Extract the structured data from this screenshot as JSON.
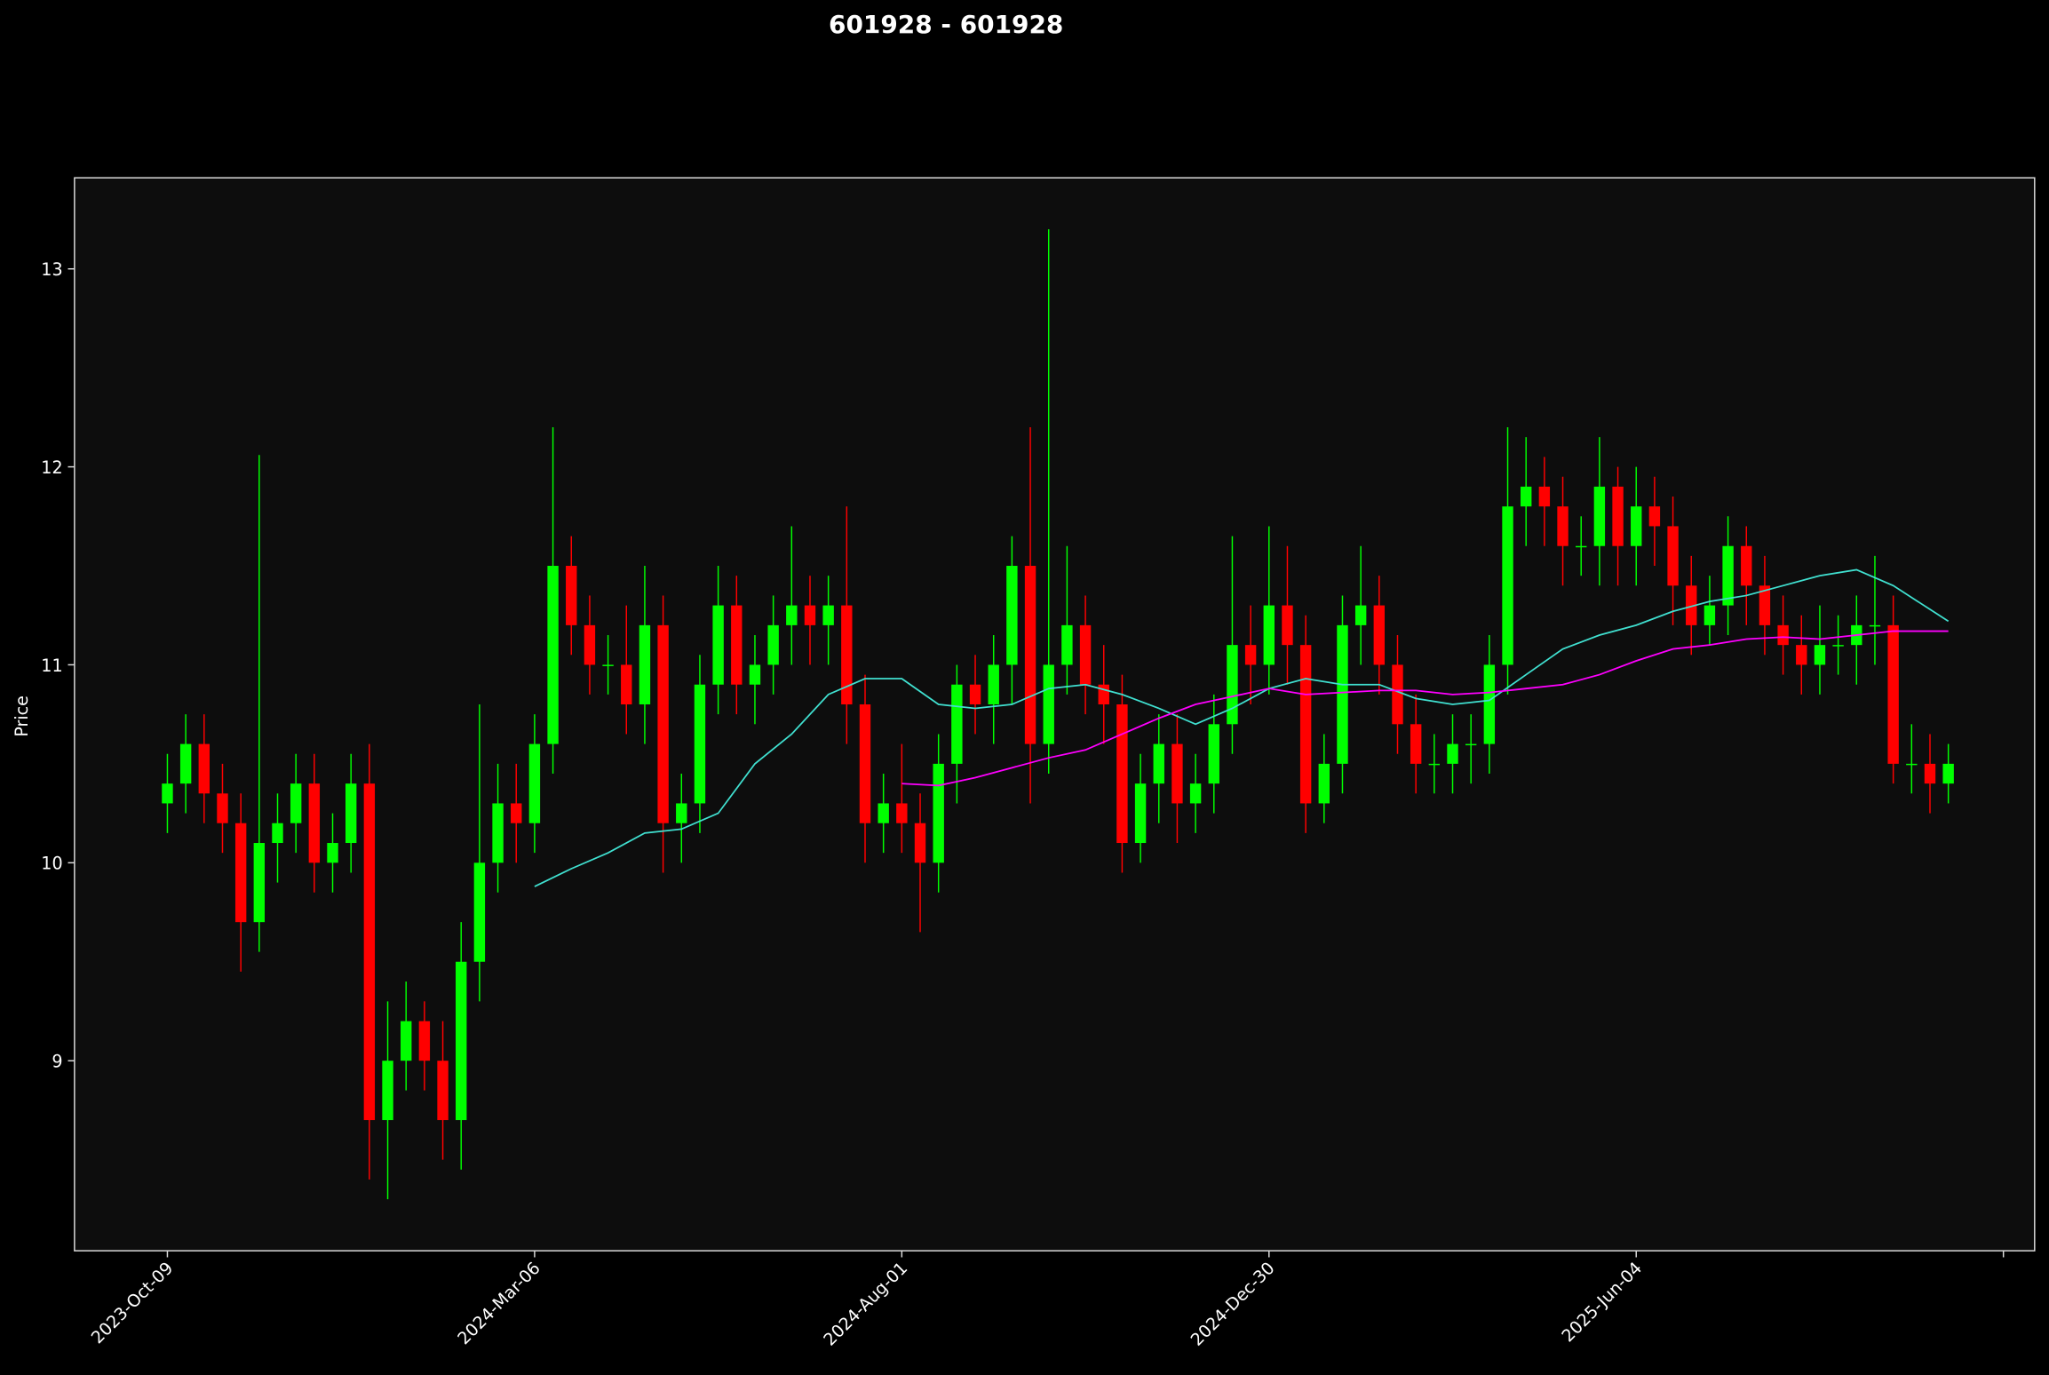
{
  "chart_data": {
    "type": "candlestick",
    "title": "601928 - 601928",
    "ylabel": "Price",
    "x": [
      0,
      5,
      10,
      15,
      20,
      25,
      30,
      35,
      40,
      45,
      50,
      55,
      60,
      65,
      70,
      75,
      80,
      85,
      90,
      95,
      100,
      105,
      110,
      115,
      120,
      125,
      130,
      135,
      140,
      145,
      150,
      155,
      160,
      165,
      170,
      175,
      180,
      185,
      190,
      195,
      200,
      205,
      210,
      215,
      220,
      225,
      230,
      235,
      240,
      245,
      250,
      255,
      260,
      265,
      270,
      275,
      280,
      285,
      290,
      295,
      300,
      305,
      310,
      315,
      320,
      325,
      330,
      335,
      340,
      345,
      350,
      355,
      360,
      365,
      370,
      375,
      380,
      385,
      390,
      395,
      400,
      405,
      410,
      415,
      420,
      425,
      430,
      435,
      440,
      445,
      450,
      455,
      460,
      465,
      470,
      475,
      480,
      485
    ],
    "open": [
      10.3,
      10.4,
      10.6,
      10.35,
      10.2,
      9.7,
      10.1,
      10.2,
      10.4,
      10.0,
      10.1,
      10.4,
      8.7,
      9.0,
      9.2,
      9.0,
      8.7,
      9.5,
      10.0,
      10.3,
      10.2,
      10.6,
      11.5,
      11.2,
      11.0,
      11.0,
      10.8,
      11.2,
      10.2,
      10.3,
      10.9,
      11.3,
      10.9,
      11.0,
      11.2,
      11.3,
      11.2,
      11.3,
      10.8,
      10.2,
      10.3,
      10.2,
      10.0,
      10.5,
      10.9,
      10.8,
      11.0,
      11.5,
      10.6,
      11.0,
      11.2,
      10.9,
      10.8,
      10.1,
      10.4,
      10.6,
      10.3,
      10.4,
      10.7,
      11.1,
      11.0,
      11.3,
      11.1,
      10.3,
      10.5,
      11.2,
      11.3,
      11.0,
      10.7,
      10.5,
      10.5,
      10.6,
      10.6,
      11.0,
      11.8,
      11.9,
      11.8,
      11.6,
      11.6,
      11.9,
      11.6,
      11.8,
      11.7,
      11.4,
      11.2,
      11.3,
      11.6,
      11.4,
      11.2,
      11.1,
      11.0,
      11.1,
      11.1,
      11.2,
      11.2,
      10.5,
      10.5,
      10.4
    ],
    "high": [
      10.55,
      10.75,
      10.75,
      10.5,
      10.35,
      12.06,
      10.35,
      10.55,
      10.55,
      10.25,
      10.55,
      10.6,
      9.3,
      9.4,
      9.3,
      9.2,
      9.7,
      10.8,
      10.5,
      10.5,
      10.75,
      12.2,
      11.65,
      11.35,
      11.15,
      11.3,
      11.5,
      11.35,
      10.45,
      11.05,
      11.5,
      11.45,
      11.15,
      11.35,
      11.7,
      11.45,
      11.45,
      11.8,
      10.95,
      10.45,
      10.6,
      10.35,
      10.65,
      11.0,
      11.05,
      11.15,
      11.65,
      12.2,
      13.2,
      11.6,
      11.35,
      11.1,
      10.95,
      10.55,
      10.75,
      10.75,
      10.55,
      10.85,
      11.65,
      11.3,
      11.7,
      11.6,
      11.25,
      10.65,
      11.35,
      11.6,
      11.45,
      11.15,
      10.85,
      10.65,
      10.75,
      10.75,
      11.15,
      12.2,
      12.15,
      12.05,
      11.95,
      11.75,
      12.15,
      12.0,
      12.0,
      11.95,
      11.85,
      11.55,
      11.45,
      11.75,
      11.7,
      11.55,
      11.35,
      11.25,
      11.3,
      11.25,
      11.35,
      11.55,
      11.35,
      10.7,
      10.65,
      10.6
    ],
    "low": [
      10.15,
      10.25,
      10.2,
      10.05,
      9.45,
      9.55,
      9.9,
      10.05,
      9.85,
      9.85,
      9.95,
      8.4,
      8.3,
      8.85,
      8.85,
      8.5,
      8.45,
      9.3,
      9.85,
      10.0,
      10.05,
      10.45,
      11.05,
      10.85,
      10.85,
      10.65,
      10.6,
      9.95,
      10.0,
      10.15,
      10.75,
      10.75,
      10.7,
      10.85,
      11.0,
      11.0,
      11.0,
      10.6,
      10.0,
      10.05,
      10.05,
      9.65,
      9.85,
      10.3,
      10.65,
      10.6,
      10.8,
      10.3,
      10.45,
      10.85,
      10.75,
      10.6,
      9.95,
      10.0,
      10.2,
      10.1,
      10.15,
      10.25,
      10.55,
      10.8,
      10.85,
      10.9,
      10.15,
      10.2,
      10.35,
      11.0,
      10.85,
      10.55,
      10.35,
      10.35,
      10.35,
      10.4,
      10.45,
      10.85,
      11.6,
      11.6,
      11.4,
      11.45,
      11.4,
      11.4,
      11.4,
      11.5,
      11.2,
      11.05,
      11.1,
      11.15,
      11.2,
      11.05,
      10.95,
      10.85,
      10.85,
      10.95,
      10.9,
      11.0,
      10.4,
      10.35,
      10.25,
      10.3
    ],
    "close": [
      10.4,
      10.6,
      10.35,
      10.2,
      9.7,
      10.1,
      10.2,
      10.4,
      10.0,
      10.1,
      10.4,
      8.7,
      9.0,
      9.2,
      9.0,
      8.7,
      9.5,
      10.0,
      10.3,
      10.2,
      10.6,
      11.5,
      11.2,
      11.0,
      11.0,
      10.8,
      11.2,
      10.2,
      10.3,
      10.9,
      11.3,
      10.9,
      11.0,
      11.2,
      11.3,
      11.2,
      11.3,
      10.8,
      10.2,
      10.3,
      10.2,
      10.0,
      10.5,
      10.9,
      10.8,
      11.0,
      11.5,
      10.6,
      11.0,
      11.2,
      10.9,
      10.8,
      10.1,
      10.4,
      10.6,
      10.3,
      10.4,
      10.7,
      11.1,
      11.0,
      11.3,
      11.1,
      10.3,
      10.5,
      11.2,
      11.3,
      11.0,
      10.7,
      10.5,
      10.5,
      10.6,
      10.6,
      11.0,
      11.8,
      11.9,
      11.8,
      11.6,
      11.6,
      11.9,
      11.6,
      11.8,
      11.7,
      11.4,
      11.2,
      11.3,
      11.6,
      11.4,
      11.2,
      11.1,
      11.0,
      11.1,
      11.1,
      11.2,
      11.2,
      10.5,
      10.5,
      10.4,
      10.5
    ],
    "up_color": "#00ff00",
    "down_color": "#ff0000",
    "lines": [
      {
        "color": "#40e0d0",
        "x": [
          100,
          110,
          120,
          130,
          140,
          150,
          160,
          170,
          180,
          190,
          200,
          210,
          220,
          230,
          240,
          250,
          260,
          270,
          280,
          290,
          300,
          310,
          320,
          330,
          340,
          350,
          360,
          370,
          380,
          390,
          400,
          410,
          420,
          430,
          440,
          450,
          460,
          470,
          480,
          485
        ],
        "values": [
          9.88,
          9.97,
          10.05,
          10.15,
          10.17,
          10.25,
          10.5,
          10.65,
          10.85,
          10.93,
          10.93,
          10.8,
          10.78,
          10.8,
          10.88,
          10.9,
          10.85,
          10.78,
          10.7,
          10.78,
          10.88,
          10.93,
          10.9,
          10.9,
          10.83,
          10.8,
          10.82,
          10.95,
          11.08,
          11.15,
          11.2,
          11.27,
          11.32,
          11.35,
          11.4,
          11.45,
          11.48,
          11.4,
          11.28,
          11.22
        ]
      },
      {
        "color": "#ff00ff",
        "x": [
          200,
          210,
          220,
          230,
          240,
          250,
          260,
          270,
          280,
          290,
          300,
          310,
          320,
          330,
          340,
          350,
          360,
          370,
          380,
          390,
          400,
          410,
          420,
          430,
          440,
          450,
          460,
          470,
          480,
          485
        ],
        "values": [
          10.4,
          10.39,
          10.43,
          10.48,
          10.53,
          10.57,
          10.65,
          10.73,
          10.8,
          10.84,
          10.88,
          10.85,
          10.86,
          10.87,
          10.87,
          10.85,
          10.86,
          10.88,
          10.9,
          10.95,
          11.02,
          11.08,
          11.1,
          11.13,
          11.14,
          11.13,
          11.15,
          11.17,
          11.17,
          11.17
        ]
      }
    ],
    "xlim": [
      -25.3,
      508.5
    ],
    "ylim": [
      8.04,
      13.46
    ],
    "yticks": [
      9,
      10,
      11,
      12,
      13
    ],
    "xticks": [
      {
        "value": 0,
        "label": "2023-Oct-09"
      },
      {
        "value": 100,
        "label": "2024-Mar-06"
      },
      {
        "value": 200,
        "label": "2024-Aug-01"
      },
      {
        "value": 300,
        "label": "2024-Dec-30"
      },
      {
        "value": 400,
        "label": "2025-Jun-04"
      },
      {
        "value": 500,
        "label": null
      }
    ]
  }
}
